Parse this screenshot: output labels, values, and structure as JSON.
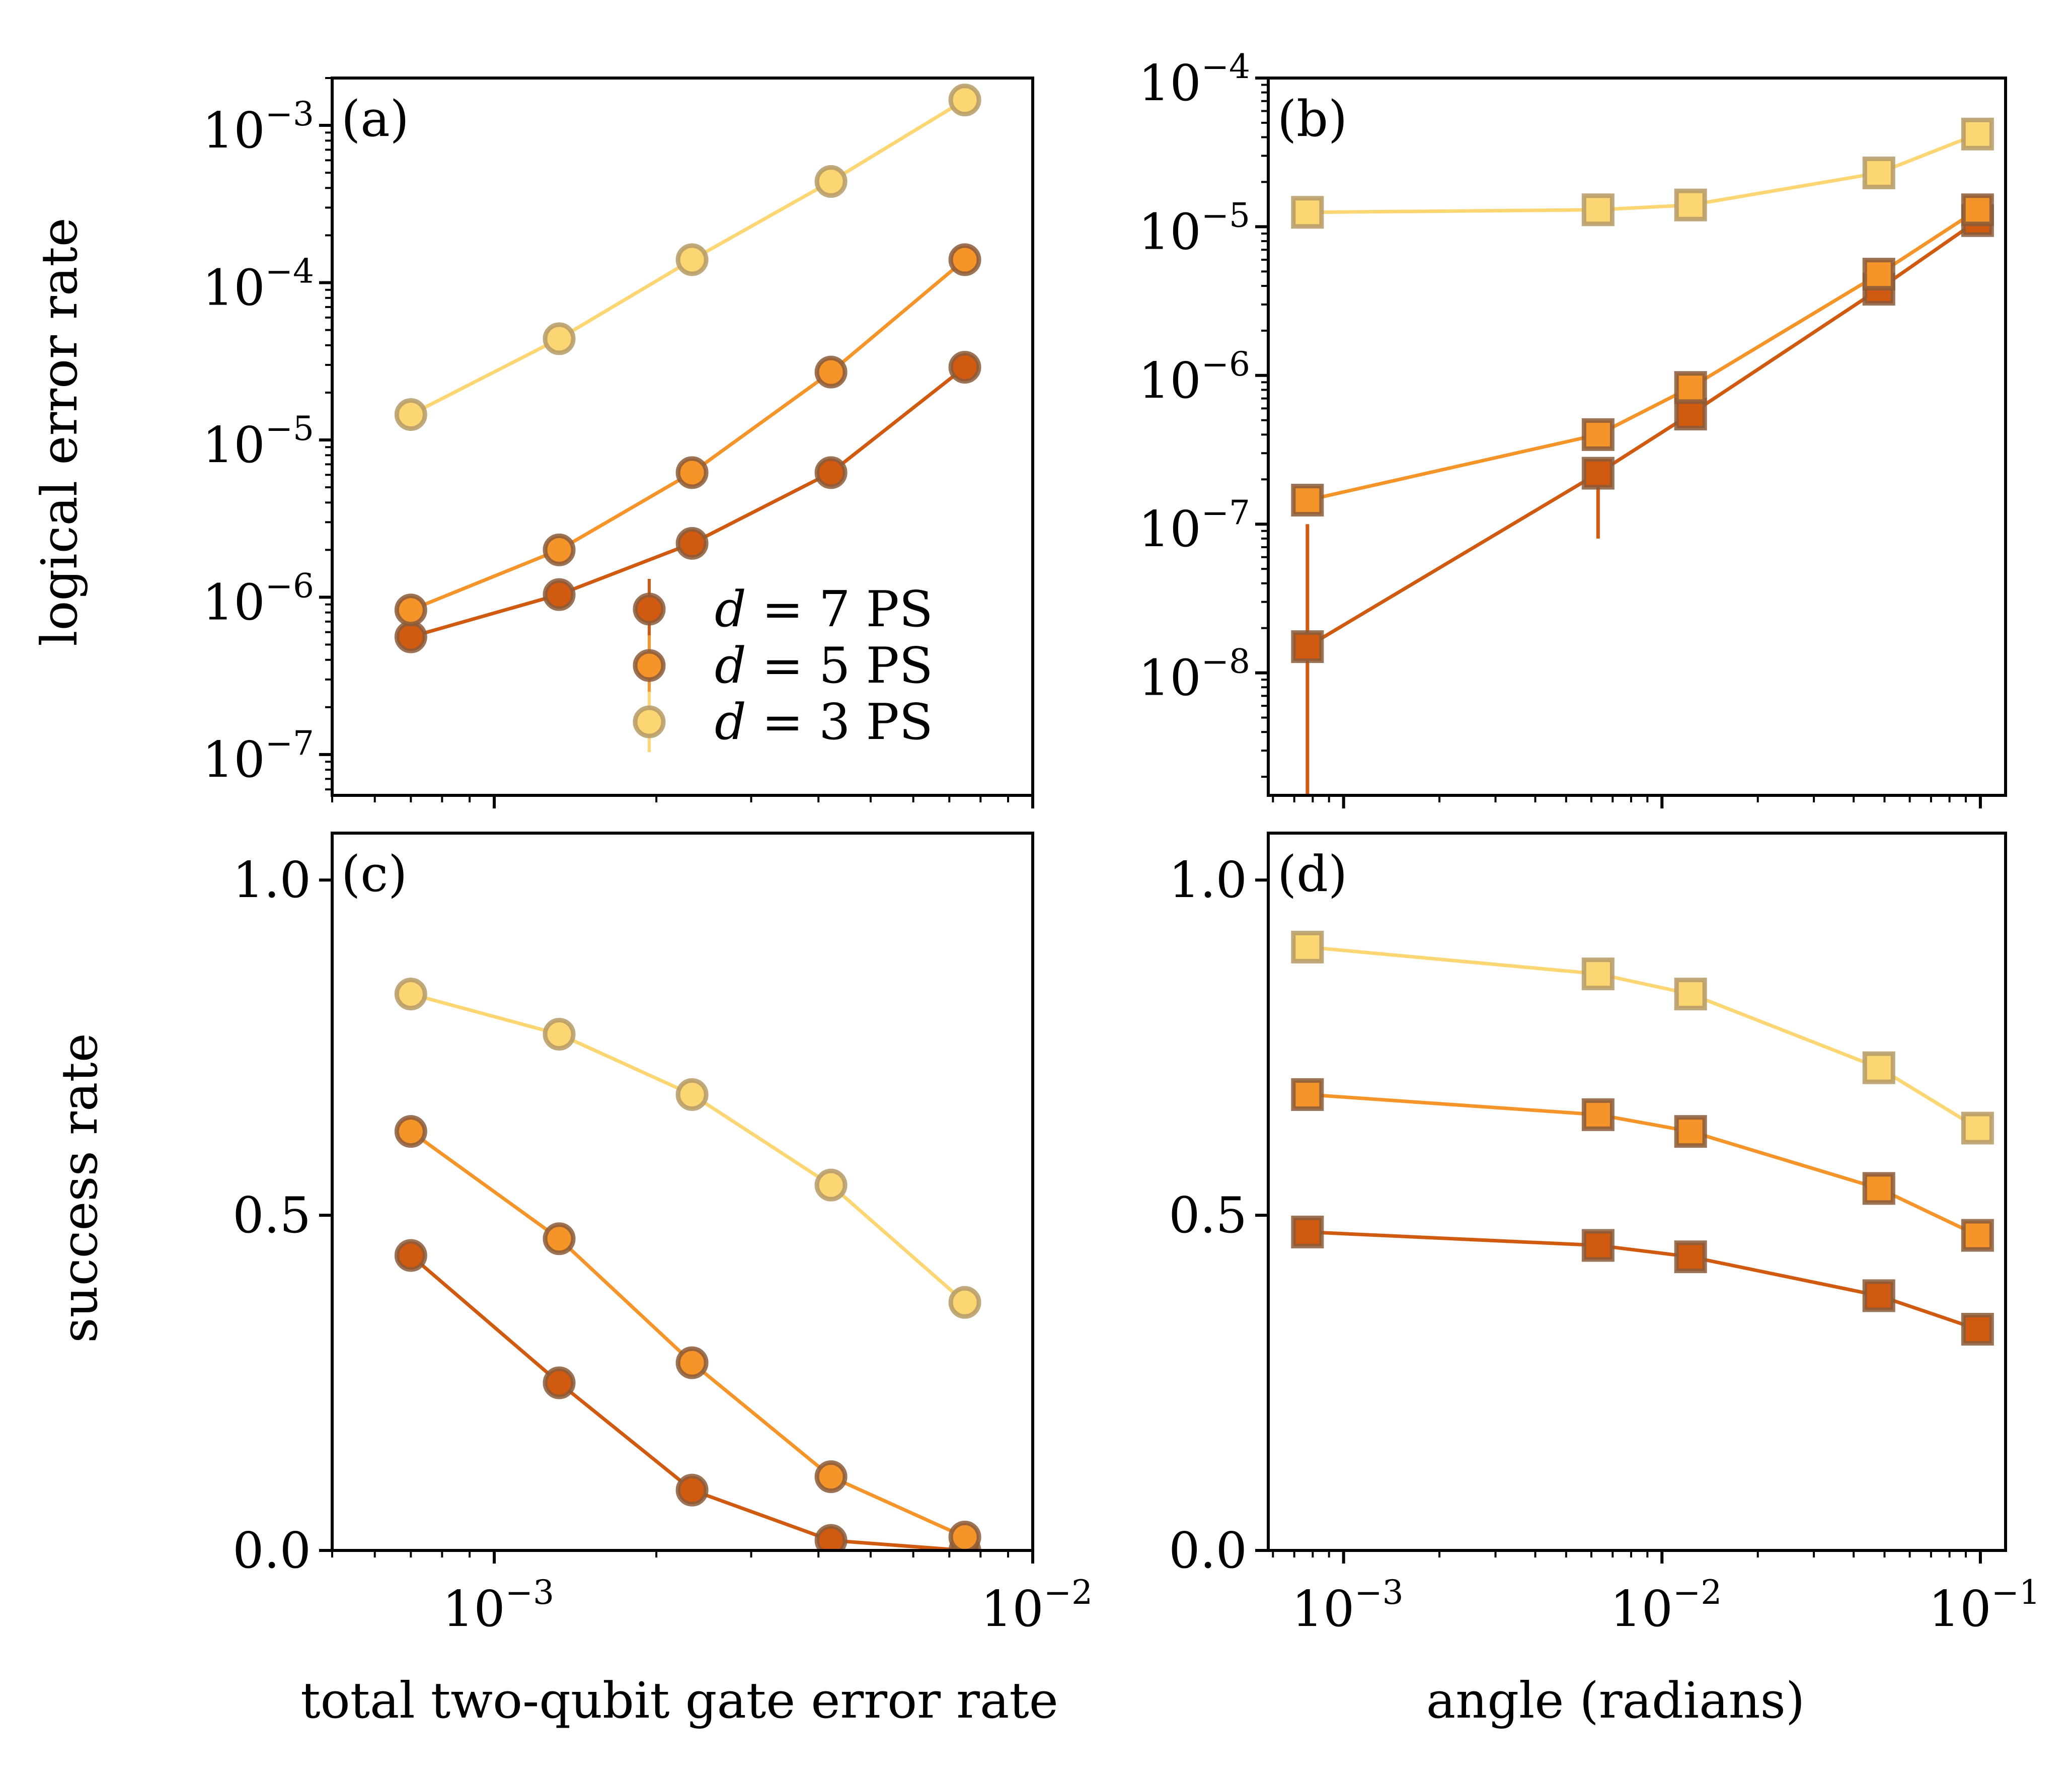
{
  "colors": {
    "d7": "#cf5a10",
    "d5": "#f59428",
    "d3": "#fdd674",
    "marker_edge_dark": "#8a5a3a",
    "marker_edge_light": "#b59a66"
  },
  "figure": {
    "xlabel_left": "total two-qubit gate error rate",
    "xlabel_right": "angle (radians)",
    "ylabel_top": "logical error rate",
    "ylabel_bottom": "success rate"
  },
  "chart_data": [
    {
      "panel": "(a)",
      "type": "line",
      "marker": "circle",
      "xscale": "log",
      "yscale": "log",
      "xlim": [
        0.0005,
        0.01
      ],
      "ylim": [
        5.5e-08,
        0.002
      ],
      "yticks": [
        1e-07,
        1e-06,
        1e-05,
        0.0001,
        0.001
      ],
      "ytick_labels": [
        {
          "base": "10",
          "exp": "−7"
        },
        {
          "base": "10",
          "exp": "−6"
        },
        {
          "base": "10",
          "exp": "−5"
        },
        {
          "base": "10",
          "exp": "−4"
        },
        {
          "base": "10",
          "exp": "−3"
        }
      ],
      "x": [
        0.0007,
        0.00132,
        0.00233,
        0.00422,
        0.00748
      ],
      "series": [
        {
          "name": "d = 7 PS",
          "color_key": "d7",
          "y": [
            5.6e-07,
            1.04e-06,
            2.2e-06,
            6.2e-06,
            2.9e-05
          ]
        },
        {
          "name": "d = 5 PS",
          "color_key": "d5",
          "y": [
            8.3e-07,
            2e-06,
            6.2e-06,
            2.7e-05,
            0.00014
          ]
        },
        {
          "name": "d = 3 PS",
          "color_key": "d3",
          "y": [
            1.45e-05,
            4.4e-05,
            0.00014,
            0.00044,
            0.00145
          ]
        }
      ],
      "legend": {
        "placement": "lower-right",
        "entries": [
          {
            "var": "d",
            "eq": " = 7 PS",
            "color_key": "d7"
          },
          {
            "var": "d",
            "eq": " = 5 PS",
            "color_key": "d5"
          },
          {
            "var": "d",
            "eq": " = 3 PS",
            "color_key": "d3"
          }
        ]
      }
    },
    {
      "panel": "(b)",
      "type": "line",
      "marker": "square",
      "xscale": "log",
      "yscale": "log",
      "xlim": [
        0.00058,
        0.12
      ],
      "ylim": [
        1.5e-09,
        0.0001
      ],
      "yticks": [
        1e-08,
        1e-07,
        1e-06,
        1e-05,
        0.0001
      ],
      "ytick_labels": [
        {
          "base": "10",
          "exp": "−8"
        },
        {
          "base": "10",
          "exp": "−7"
        },
        {
          "base": "10",
          "exp": "−6"
        },
        {
          "base": "10",
          "exp": "−5"
        },
        {
          "base": "10",
          "exp": "−4"
        }
      ],
      "x": [
        0.00077,
        0.0063,
        0.0123,
        0.048,
        0.098
      ],
      "series": [
        {
          "name": "d = 7 PS",
          "color_key": "d7",
          "y": [
            1.5e-08,
            2.2e-07,
            5.5e-07,
            3.8e-06,
            1.1e-05
          ],
          "err_low": [
            1.5e-09,
            8e-08,
            null,
            null,
            null
          ],
          "err_high": [
            1e-07,
            null,
            null,
            null,
            null
          ]
        },
        {
          "name": "d = 5 PS",
          "color_key": "d5",
          "y": [
            1.45e-07,
            4e-07,
            8.3e-07,
            4.8e-06,
            1.3e-05
          ]
        },
        {
          "name": "d = 3 PS",
          "color_key": "d3",
          "y": [
            1.25e-05,
            1.3e-05,
            1.4e-05,
            2.3e-05,
            4.2e-05
          ]
        }
      ]
    },
    {
      "panel": "(c)",
      "type": "line",
      "marker": "circle",
      "xscale": "log",
      "yscale": "linear",
      "xlim": [
        0.0005,
        0.01
      ],
      "ylim": [
        0,
        1.07
      ],
      "yticks": [
        0.0,
        0.5,
        1.0
      ],
      "ytick_labels": [
        "0.0",
        "0.5",
        "1.0"
      ],
      "xticks": [
        0.001,
        0.01
      ],
      "xtick_labels": [
        {
          "base": "10",
          "exp": "−3"
        },
        {
          "base": "10",
          "exp": "−2"
        }
      ],
      "x": [
        0.0007,
        0.00132,
        0.00233,
        0.00422,
        0.00748
      ],
      "series": [
        {
          "name": "d = 7 PS",
          "color_key": "d7",
          "y": [
            0.44,
            0.25,
            0.09,
            0.015,
            0.0
          ]
        },
        {
          "name": "d = 5 PS",
          "color_key": "d5",
          "y": [
            0.625,
            0.465,
            0.28,
            0.11,
            0.02
          ]
        },
        {
          "name": "d = 3 PS",
          "color_key": "d3",
          "y": [
            0.83,
            0.77,
            0.68,
            0.545,
            0.37
          ]
        }
      ]
    },
    {
      "panel": "(d)",
      "type": "line",
      "marker": "square",
      "xscale": "log",
      "yscale": "linear",
      "xlim": [
        0.00058,
        0.12
      ],
      "ylim": [
        0,
        1.07
      ],
      "yticks": [
        0.0,
        0.5,
        1.0
      ],
      "ytick_labels": [
        "0.0",
        "0.5",
        "1.0"
      ],
      "xticks": [
        0.001,
        0.01,
        0.1
      ],
      "xtick_labels": [
        {
          "base": "10",
          "exp": "−3"
        },
        {
          "base": "10",
          "exp": "−2"
        },
        {
          "base": "10",
          "exp": "−1"
        }
      ],
      "x": [
        0.00077,
        0.0063,
        0.0123,
        0.048,
        0.098
      ],
      "series": [
        {
          "name": "d = 7 PS",
          "color_key": "d7",
          "y": [
            0.475,
            0.455,
            0.438,
            0.38,
            0.33
          ]
        },
        {
          "name": "d = 5 PS",
          "color_key": "d5",
          "y": [
            0.68,
            0.65,
            0.625,
            0.54,
            0.47
          ]
        },
        {
          "name": "d = 3 PS",
          "color_key": "d3",
          "y": [
            0.9,
            0.86,
            0.83,
            0.72,
            0.63
          ]
        }
      ]
    }
  ]
}
